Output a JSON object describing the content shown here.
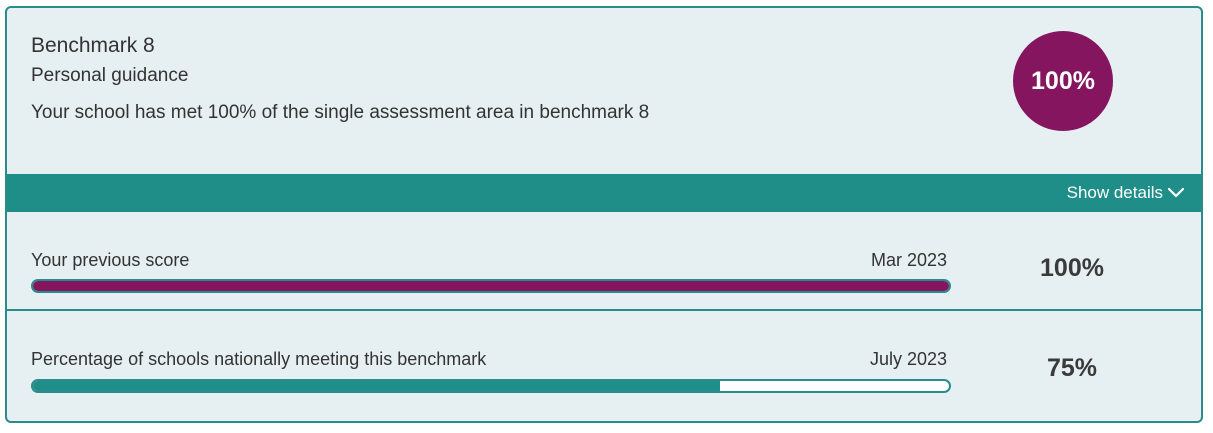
{
  "card": {
    "title": "Benchmark 8",
    "subtitle": "Personal guidance",
    "summary": "Your school has met 100% of the single assessment area in benchmark 8",
    "badge": "100%",
    "badge_color": "#85155f"
  },
  "details": {
    "label": "Show details",
    "icon": "chevron-down-icon"
  },
  "rows": [
    {
      "label": "Your previous score",
      "date": "Mar 2023",
      "value": "100%",
      "progress": 1.0,
      "color": "#85155f"
    },
    {
      "label": "Percentage of schools nationally meeting this benchmark",
      "date": "July 2023",
      "value": "75%",
      "progress": 0.75,
      "color": "#1f8e89"
    }
  ]
}
